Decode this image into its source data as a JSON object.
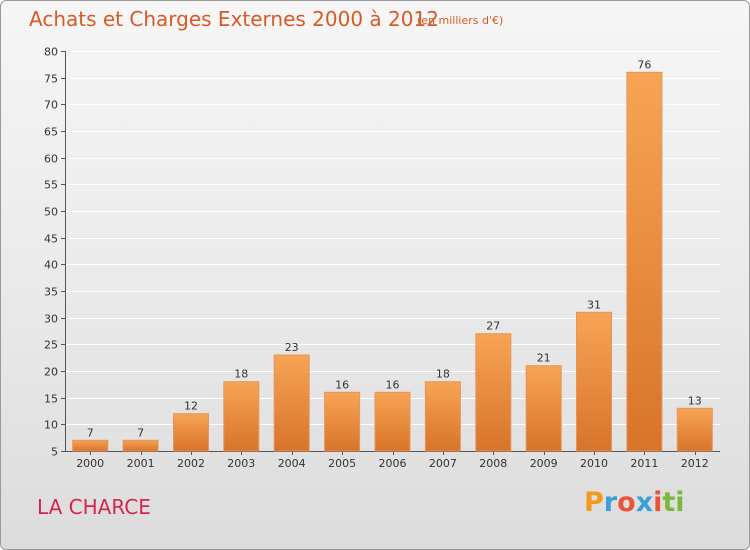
{
  "header": {
    "title": "Achats et Charges Externes 2000 à 2012",
    "unit_note": "(en milliers d'€)"
  },
  "footer": {
    "commune": "LA CHARCE",
    "logo": {
      "letters": [
        "P",
        "r",
        "o",
        "x",
        "i",
        "t",
        "i"
      ],
      "colors": [
        "#f29a1f",
        "#3b9fd8",
        "#e8533a",
        "#3b9fd8",
        "#e8533a",
        "#7bb83c",
        "#7bb83c"
      ]
    }
  },
  "colors": {
    "bar_light": "#f7a455",
    "bar_dark": "#d8742a",
    "title": "#d85a24",
    "commune": "#d4264e"
  },
  "chart_data": {
    "type": "bar",
    "title": "Achats et Charges Externes 2000 à 2012",
    "subtitle": "(en milliers d'€)",
    "xlabel": "",
    "ylabel": "",
    "categories": [
      "2000",
      "2001",
      "2002",
      "2003",
      "2004",
      "2005",
      "2006",
      "2007",
      "2008",
      "2009",
      "2010",
      "2011",
      "2012"
    ],
    "values": [
      7,
      7,
      12,
      18,
      23,
      16,
      16,
      18,
      27,
      21,
      31,
      76,
      13
    ],
    "data_labels": [
      "7",
      "7",
      "12",
      "18",
      "23",
      "16",
      "16",
      "18",
      "27",
      "21",
      "31",
      "76",
      "13"
    ],
    "ylim": [
      5,
      80
    ],
    "yticks": [
      5,
      10,
      15,
      20,
      25,
      30,
      35,
      40,
      45,
      50,
      55,
      60,
      65,
      70,
      75,
      80
    ],
    "grid": true,
    "legend": "none"
  }
}
